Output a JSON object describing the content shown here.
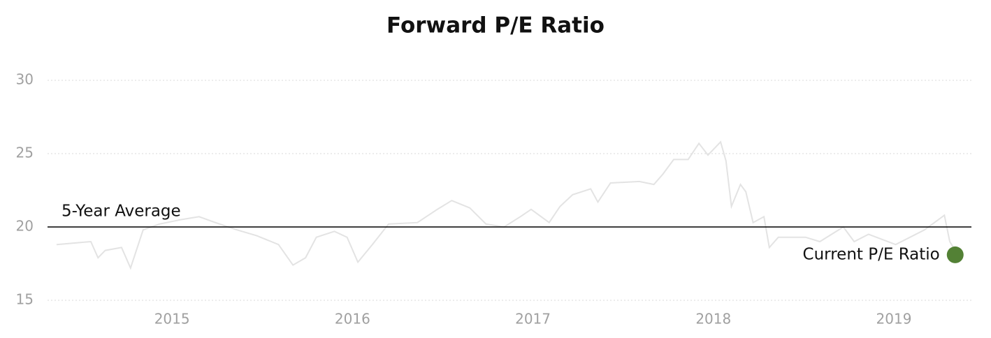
{
  "chart_data": {
    "type": "line",
    "title": "Forward P/E Ratio",
    "x": [
      2014.36,
      2014.55,
      2014.59,
      2014.63,
      2014.72,
      2014.77,
      2014.84,
      2014.93,
      2015.05,
      2015.15,
      2015.24,
      2015.36,
      2015.47,
      2015.59,
      2015.67,
      2015.74,
      2015.8,
      2015.9,
      2015.97,
      2016.03,
      2016.11,
      2016.2,
      2016.36,
      2016.47,
      2016.55,
      2016.65,
      2016.74,
      2016.84,
      2016.93,
      2016.99,
      2017.09,
      2017.15,
      2017.22,
      2017.32,
      2017.36,
      2017.43,
      2017.59,
      2017.67,
      2017.72,
      2017.78,
      2017.86,
      2017.92,
      2017.97,
      2018.04,
      2018.07,
      2018.1,
      2018.15,
      2018.18,
      2018.22,
      2018.28,
      2018.31,
      2018.36,
      2018.51,
      2018.59,
      2018.72,
      2018.78,
      2018.86,
      2019.01,
      2019.17,
      2019.28,
      2019.31,
      2019.33
    ],
    "values": [
      18.8,
      19.0,
      17.9,
      18.4,
      18.6,
      17.2,
      19.8,
      20.2,
      20.5,
      20.7,
      20.3,
      19.8,
      19.4,
      18.8,
      17.4,
      17.9,
      19.3,
      19.7,
      19.3,
      17.6,
      18.8,
      20.2,
      20.3,
      21.2,
      21.8,
      21.3,
      20.2,
      20.0,
      20.7,
      21.2,
      20.3,
      21.4,
      22.2,
      22.6,
      21.7,
      23.0,
      23.1,
      22.9,
      23.6,
      24.6,
      24.6,
      25.7,
      24.9,
      25.8,
      24.5,
      21.4,
      22.9,
      22.4,
      20.3,
      20.7,
      18.6,
      19.3,
      19.3,
      19.0,
      20.0,
      19.0,
      19.5,
      18.8,
      19.8,
      20.8,
      19.0,
      18.6
    ],
    "color": "#e3e3e3",
    "average": {
      "label": "5-Year Average",
      "value": 20,
      "color": "#000000"
    },
    "current": {
      "label": "Current P/E Ratio",
      "x": 2019.34,
      "value": 18.1,
      "color": "#538135"
    },
    "xlim": [
      2014.31,
      2019.43
    ],
    "xticks": [
      2015,
      2016,
      2017,
      2018,
      2019
    ],
    "ylim": [
      15,
      30
    ],
    "yticks": [
      15,
      20,
      25,
      30
    ],
    "grid": true
  }
}
